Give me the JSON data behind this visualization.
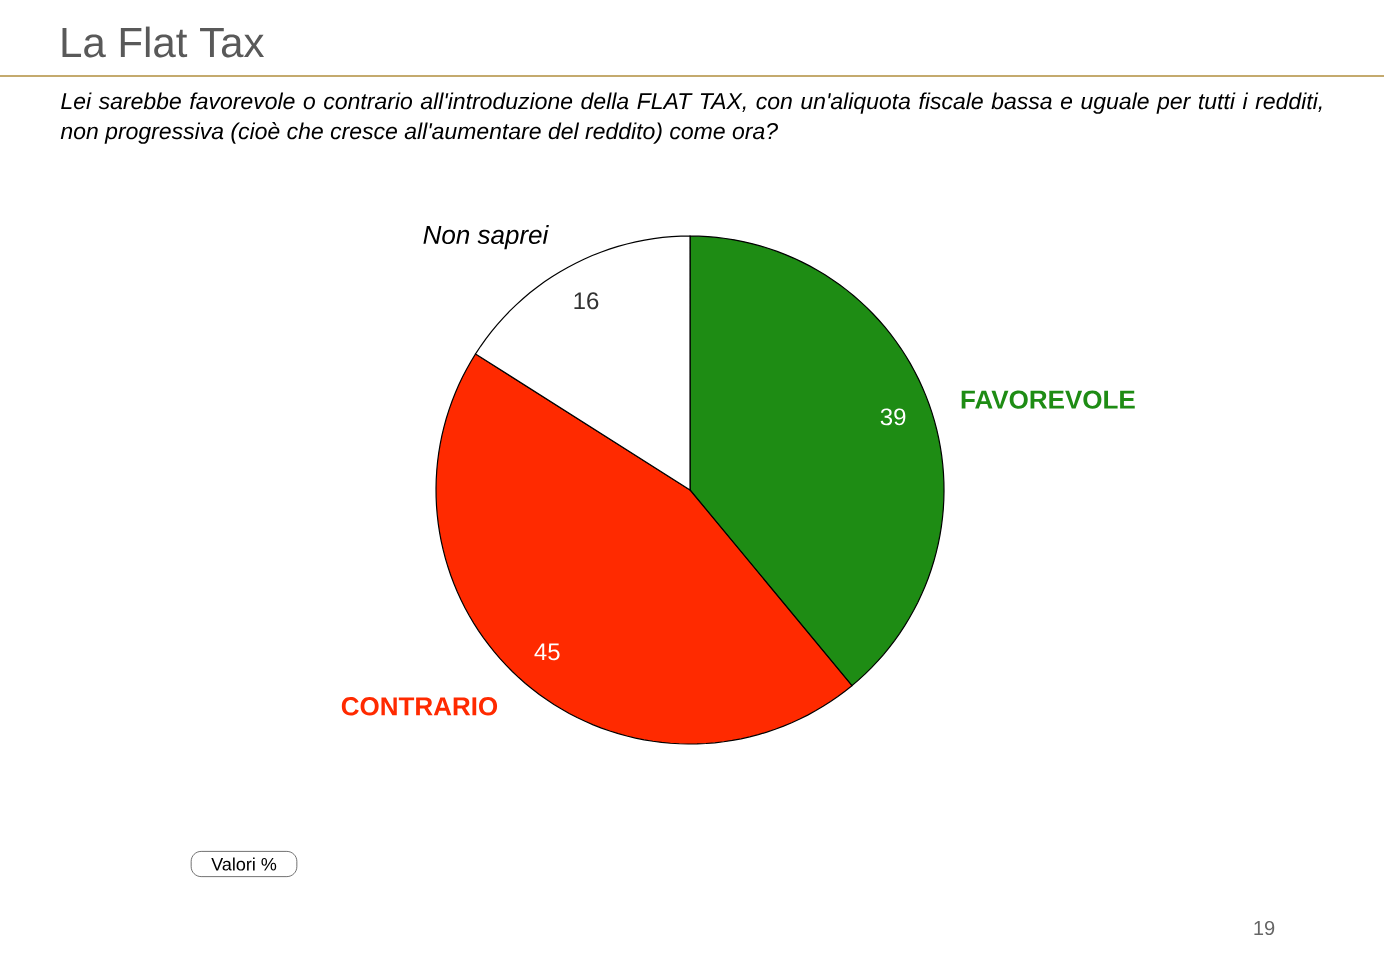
{
  "chart_data": {
    "type": "pie",
    "title": "La Flat Tax",
    "subtitle": "Lei sarebbe favorevole o contrario all'introduzione della FLAT TAX, con un'aliquota fiscale bassa e uguale per tutti i redditi, non progressiva (cioè che cresce all'aumentare del reddito) come ora?",
    "categories": [
      "FAVOREVOLE",
      "CONTRARIO",
      "Non saprei"
    ],
    "values": [
      39,
      45,
      16
    ],
    "colors": [
      "#1e8c14",
      "#ff2a00",
      "#ffffff"
    ],
    "data_labels": true,
    "annotations": [
      "Valori %",
      "19"
    ]
  }
}
